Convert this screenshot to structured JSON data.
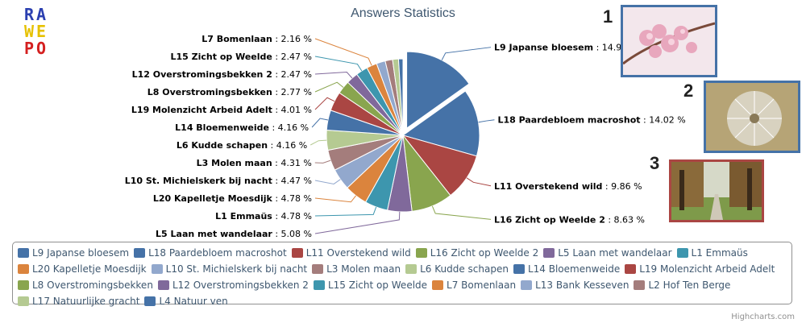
{
  "logo": {
    "rows": [
      {
        "letters": [
          "R",
          "A"
        ],
        "colors": [
          "#2b3fb0",
          "#2b3fb0"
        ]
      },
      {
        "letters": [
          "W",
          "E"
        ],
        "colors": [
          "#e6c100",
          "#e6c100"
        ]
      },
      {
        "letters": [
          "P",
          "O"
        ],
        "colors": [
          "#d42020",
          "#d42020"
        ]
      }
    ]
  },
  "credit": "Highcharts.com",
  "photos": [
    {
      "number": "1",
      "subject": "pink blossom",
      "border": "#4572A7"
    },
    {
      "number": "2",
      "subject": "dandelion seed head",
      "border": "#4572A7"
    },
    {
      "number": "3",
      "subject": "tree-lined lane",
      "border": "#AA4643"
    }
  ],
  "chart_data": {
    "type": "pie",
    "title": "Answers Statistics",
    "legend_position": "bottom",
    "slices": [
      {
        "name": "L9 Japanse bloesem",
        "value": 14.95,
        "label": "14.95 %",
        "color": "#4572A7",
        "sliced": true
      },
      {
        "name": "L18 Paardebloem macroshot",
        "value": 14.02,
        "label": "14.02 %",
        "color": "#4572A7"
      },
      {
        "name": "L11 Overstekend wild",
        "value": 9.86,
        "label": "9.86 %",
        "color": "#AA4643"
      },
      {
        "name": "L16 Zicht op Weelde 2",
        "value": 8.63,
        "label": "8.63 %",
        "color": "#89A54E"
      },
      {
        "name": "L5 Laan met wandelaar",
        "value": 5.08,
        "label": "5.08 %",
        "color": "#80699B"
      },
      {
        "name": "L1 Emmaüs",
        "value": 4.78,
        "label": "4.78 %",
        "color": "#3D96AE"
      },
      {
        "name": "L20 Kapelletje Moesdijk",
        "value": 4.78,
        "label": "4.78 %",
        "color": "#DB843D"
      },
      {
        "name": "L10 St. Michielskerk bij nacht",
        "value": 4.47,
        "label": "4.47 %",
        "color": "#92A8CD"
      },
      {
        "name": "L3 Molen maan",
        "value": 4.31,
        "label": "4.31 %",
        "color": "#A47D7C"
      },
      {
        "name": "L6 Kudde schapen",
        "value": 4.16,
        "label": "4.16 %",
        "color": "#B5CA92"
      },
      {
        "name": "L14 Bloemenweide",
        "value": 4.16,
        "label": "4.16 %",
        "color": "#4572A7"
      },
      {
        "name": "L19 Molenzicht Arbeid Adelt",
        "value": 4.01,
        "label": "4.01 %",
        "color": "#AA4643"
      },
      {
        "name": "L8 Overstromingsbekken",
        "value": 2.77,
        "label": "2.77 %",
        "color": "#89A54E"
      },
      {
        "name": "L12 Overstromingsbekken 2",
        "value": 2.47,
        "label": "2.47 %",
        "color": "#80699B"
      },
      {
        "name": "L15 Zicht op Weelde",
        "value": 2.47,
        "label": "2.47 %",
        "color": "#3D96AE"
      },
      {
        "name": "L7 Bomenlaan",
        "value": 2.16,
        "label": "2.16 %",
        "color": "#DB843D"
      },
      {
        "name": "L13 Bank Kesseven",
        "value": 1.85,
        "color": "#92A8CD"
      },
      {
        "name": "L2 Hof Ten Berge",
        "value": 1.54,
        "color": "#A47D7C"
      },
      {
        "name": "L17 Natuurlijke gracht",
        "value": 1.23,
        "color": "#B5CA92"
      },
      {
        "name": "L4 Natuur ven",
        "value": 0.92,
        "color": "#4572A7"
      }
    ]
  }
}
